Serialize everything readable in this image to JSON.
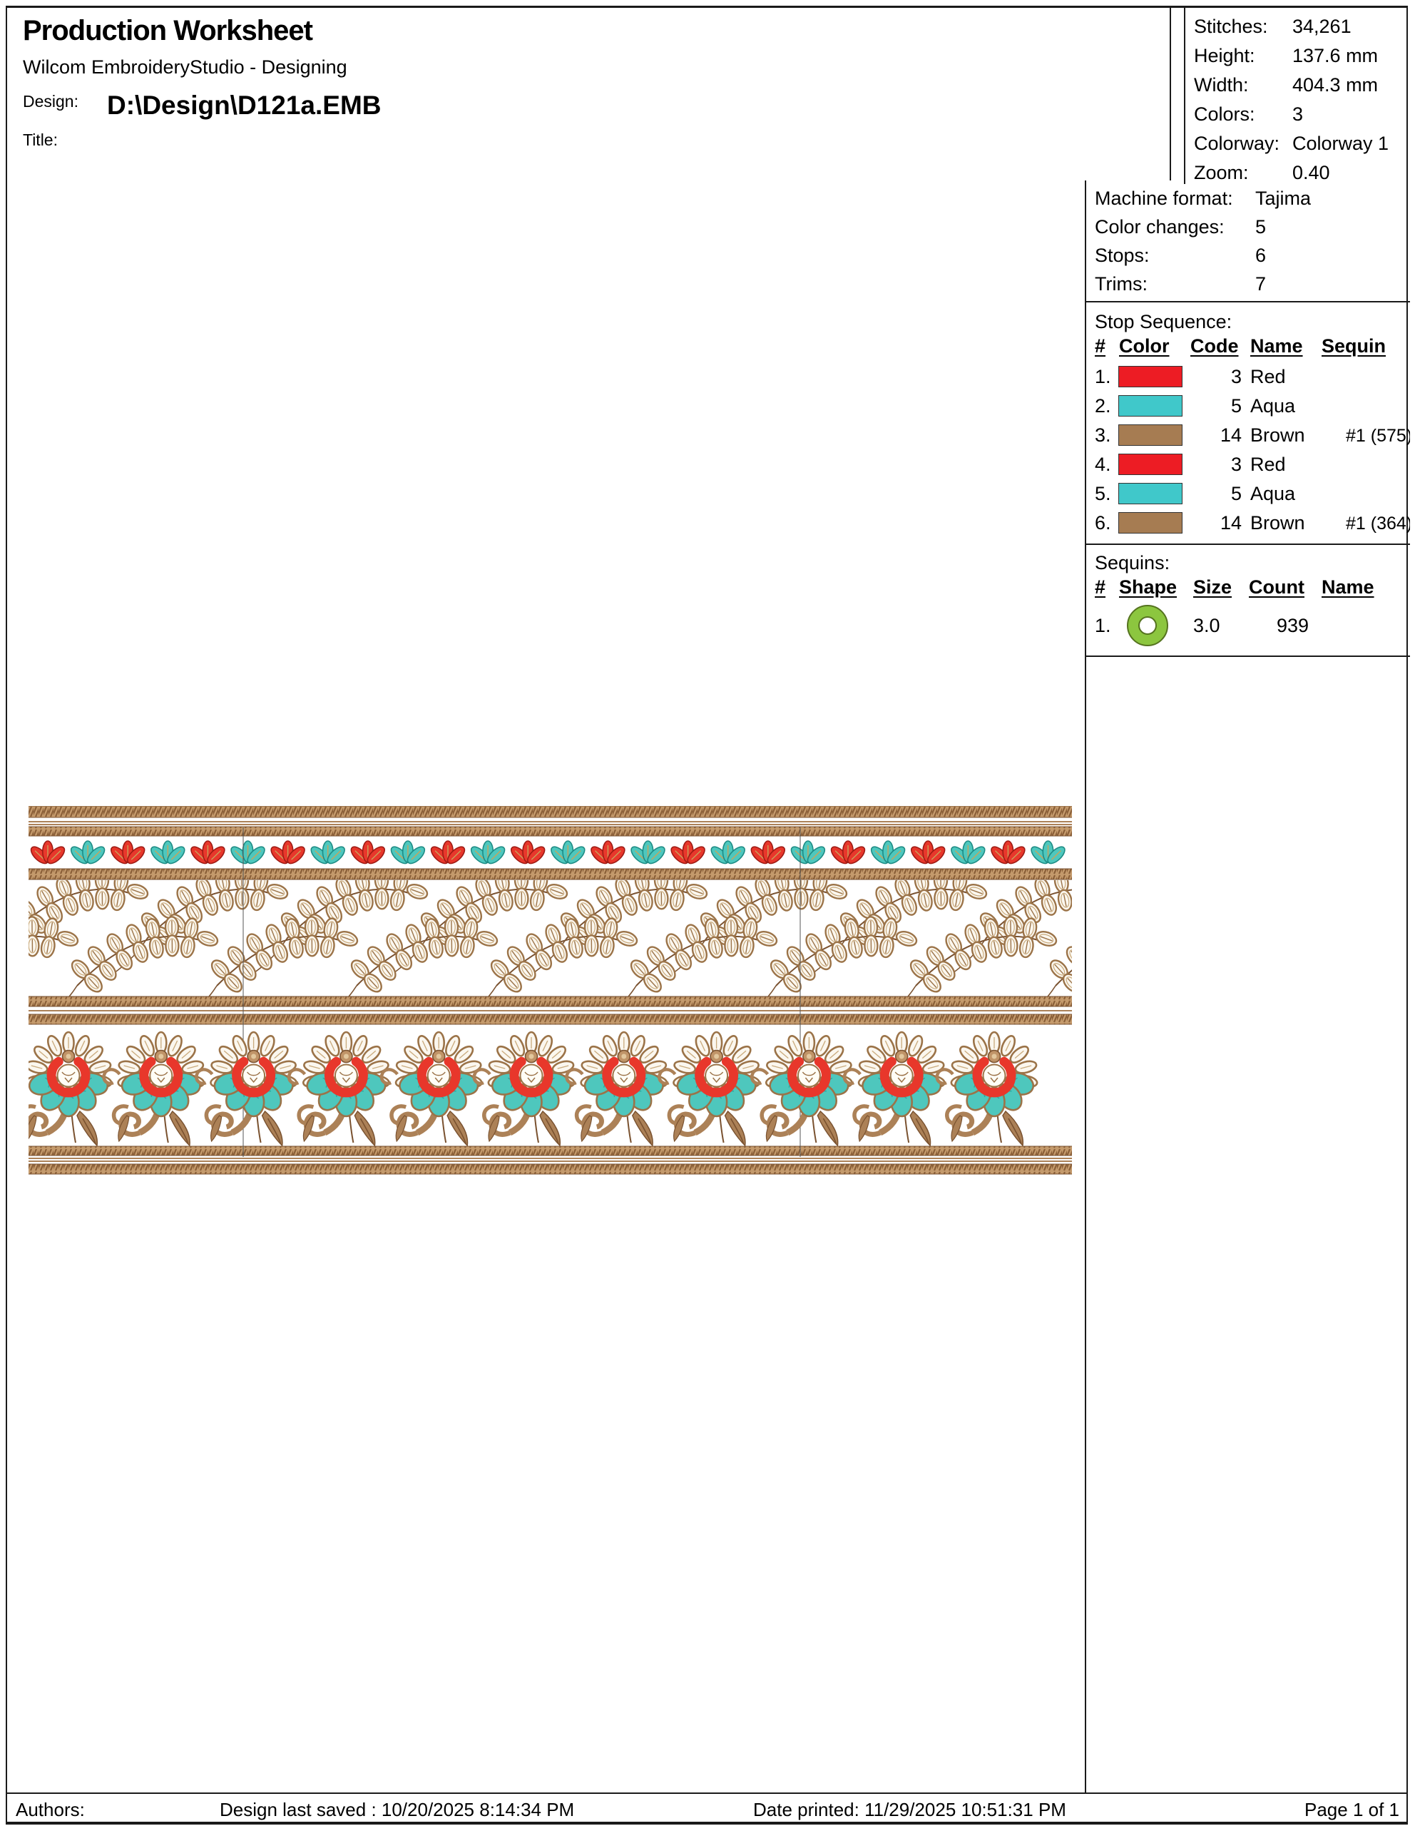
{
  "header": {
    "title": "Production Worksheet",
    "subtitle": "Wilcom EmbroideryStudio - Designing",
    "design_label": "Design:",
    "design_path": "D:\\Design\\D121a.EMB",
    "title_label": "Title:",
    "title_value": ""
  },
  "info_box": {
    "rows": [
      {
        "label": "Stitches:",
        "value": "34,261"
      },
      {
        "label": "Height:",
        "value": "137.6 mm"
      },
      {
        "label": "Width:",
        "value": "404.3 mm"
      },
      {
        "label": "Colors:",
        "value": "3"
      },
      {
        "label": "Colorway:",
        "value": "Colorway 1"
      },
      {
        "label": "Zoom:",
        "value": "0.40"
      }
    ]
  },
  "machine_box": {
    "rows": [
      {
        "label": "Machine format:",
        "value": "Tajima"
      },
      {
        "label": "Color changes:",
        "value": "5"
      },
      {
        "label": "Stops:",
        "value": "6"
      },
      {
        "label": "Trims:",
        "value": "7"
      }
    ]
  },
  "stop_sequence": {
    "title": "Stop Sequence:",
    "headers": {
      "num": "#",
      "color": "Color",
      "code": "Code",
      "name": "Name",
      "sequin": "Sequin"
    },
    "rows": [
      {
        "num": "1.",
        "color": "#ED1C24",
        "code": "3",
        "name": "Red",
        "sequin": ""
      },
      {
        "num": "2.",
        "color": "#40C8CA",
        "code": "5",
        "name": "Aqua",
        "sequin": ""
      },
      {
        "num": "3.",
        "color": "#A67C52",
        "code": "14",
        "name": "Brown",
        "sequin": "#1 (575)"
      },
      {
        "num": "4.",
        "color": "#ED1C24",
        "code": "3",
        "name": "Red",
        "sequin": ""
      },
      {
        "num": "5.",
        "color": "#40C8CA",
        "code": "5",
        "name": "Aqua",
        "sequin": ""
      },
      {
        "num": "6.",
        "color": "#A67C52",
        "code": "14",
        "name": "Brown",
        "sequin": "#1 (364)"
      }
    ]
  },
  "sequins": {
    "title": "Sequins:",
    "headers": {
      "num": "#",
      "shape": "Shape",
      "size": "Size",
      "count": "Count",
      "name": "Name"
    },
    "rows": [
      {
        "num": "1.",
        "shape_color": "#8CC63F",
        "size": "3.0",
        "count": "939",
        "name": ""
      }
    ]
  },
  "footer": {
    "authors_label": "Authors:",
    "saved": "Design last saved : 10/20/2025 8:14:34 PM",
    "printed": "Date printed: 11/29/2025 10:51:31 PM",
    "page": "Page 1 of 1"
  },
  "design": {
    "colors": {
      "red": "#E8372B",
      "red_dark": "#9E1B14",
      "aqua": "#4EC7BD",
      "aqua_dark": "#1E8C85",
      "brown": "#AC8157",
      "brown_dark": "#7A5230",
      "tan": "#C49A6C",
      "stitch": "#8A5F38",
      "leaf_fill": "#FBF7EF",
      "leaf_stroke": "#9B7348",
      "vein": "#C9A35A",
      "marker": "#555555"
    },
    "trefoil": {
      "count": 26,
      "start": 27,
      "period": 56.1
    },
    "flowers": {
      "count": 11,
      "start": 56,
      "period": 129.8
    },
    "sprays": {
      "cols": 9,
      "period": 196
    },
    "markers": [
      301,
      1082
    ]
  }
}
